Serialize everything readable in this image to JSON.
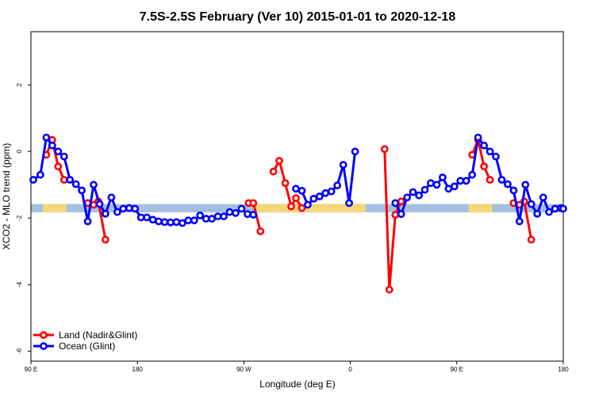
{
  "chart_data": {
    "type": "line",
    "title": "7.5S-2.5S February (Ver 10)   2015-01-01 to 2020-12-18",
    "xlabel": "Longitude (deg E)",
    "ylabel": "XCO2 - MLO trend (ppm)",
    "xlim": [
      90,
      540
    ],
    "ylim": [
      -6.3,
      3.6
    ],
    "x_ticks": [
      {
        "value": 90,
        "label": "90 E"
      },
      {
        "value": 180,
        "label": "180"
      },
      {
        "value": 270,
        "label": "90 W"
      },
      {
        "value": 360,
        "label": "0"
      },
      {
        "value": 450,
        "label": "90 E"
      },
      {
        "value": 540,
        "label": "180"
      }
    ],
    "y_ticks": [
      {
        "value": -6,
        "label": "-6"
      },
      {
        "value": -4,
        "label": "-4"
      },
      {
        "value": -2,
        "label": "-2"
      },
      {
        "value": 0,
        "label": "0"
      },
      {
        "value": 2,
        "label": "2"
      }
    ],
    "grid": false,
    "legend_position": "bottom-left",
    "band": {
      "y_min": -1.83,
      "y_max": -1.58,
      "color": "#a6bfe0"
    },
    "land_highlights": [
      {
        "x_start": 100,
        "x_end": 120,
        "color": "#f5d77a"
      },
      {
        "x_start": 278,
        "x_end": 373,
        "color": "#f5d77a"
      },
      {
        "x_start": 460,
        "x_end": 480,
        "color": "#f5d77a"
      }
    ],
    "series": [
      {
        "name": "Land (Nadir&Glint)",
        "color": "#ff0000",
        "segments": [
          [
            [
              103,
              -0.1
            ],
            [
              108,
              0.35
            ],
            [
              113,
              -0.45
            ],
            [
              118,
              -0.85
            ]
          ],
          [
            [
              138,
              -1.55
            ],
            [
              143,
              -1.6
            ],
            [
              147,
              -1.5
            ],
            [
              153,
              -2.65
            ]
          ],
          [
            [
              274,
              -1.55
            ],
            [
              278,
              -1.55
            ],
            [
              284,
              -2.4
            ]
          ],
          [
            [
              295,
              -0.6
            ],
            [
              300,
              -0.28
            ],
            [
              305,
              -0.95
            ],
            [
              310,
              -1.65
            ],
            [
              314,
              -1.4
            ],
            [
              319,
              -1.7
            ]
          ],
          [
            [
              389,
              0.07
            ],
            [
              393,
              -4.15
            ],
            [
              398,
              -1.9
            ],
            [
              403,
              -1.5
            ]
          ],
          [
            [
              463,
              -0.1
            ],
            [
              468,
              0.35
            ],
            [
              473,
              -0.45
            ],
            [
              478,
              -0.85
            ]
          ],
          [
            [
              498,
              -1.55
            ],
            [
              503,
              -1.6
            ],
            [
              507,
              -1.5
            ],
            [
              513,
              -2.65
            ]
          ]
        ]
      },
      {
        "name": "Ocean (Glint)",
        "color": "#0000ff",
        "segments": [
          [
            [
              92,
              -0.85
            ],
            [
              98,
              -0.7
            ],
            [
              103,
              0.42
            ],
            [
              108,
              0.18
            ],
            [
              113,
              0.0
            ],
            [
              118,
              -0.15
            ],
            [
              123,
              -0.85
            ],
            [
              128,
              -0.98
            ],
            [
              133,
              -1.17
            ],
            [
              138,
              -2.1
            ],
            [
              143,
              -1.0
            ],
            [
              148,
              -1.58
            ],
            [
              153,
              -1.87
            ],
            [
              158,
              -1.38
            ],
            [
              163,
              -1.82
            ],
            [
              168,
              -1.72
            ],
            [
              173,
              -1.7
            ],
            [
              178,
              -1.72
            ],
            [
              183,
              -1.98
            ],
            [
              188,
              -1.98
            ],
            [
              193,
              -2.05
            ],
            [
              198,
              -2.1
            ],
            [
              203,
              -2.12
            ],
            [
              208,
              -2.13
            ],
            [
              213,
              -2.12
            ],
            [
              218,
              -2.15
            ],
            [
              223,
              -2.07
            ],
            [
              228,
              -2.07
            ],
            [
              233,
              -1.92
            ],
            [
              238,
              -2.02
            ],
            [
              243,
              -2.02
            ],
            [
              248,
              -1.95
            ],
            [
              253,
              -1.95
            ],
            [
              258,
              -1.82
            ],
            [
              263,
              -1.85
            ],
            [
              268,
              -1.72
            ],
            [
              273,
              -1.88
            ],
            [
              278,
              -1.9
            ]
          ],
          [
            [
              314,
              -1.12
            ],
            [
              319,
              -1.18
            ],
            [
              324,
              -1.6
            ],
            [
              329,
              -1.42
            ],
            [
              334,
              -1.35
            ],
            [
              339,
              -1.25
            ],
            [
              344,
              -1.2
            ],
            [
              349,
              -1.02
            ],
            [
              354,
              -0.4
            ],
            [
              359,
              -1.55
            ],
            [
              364,
              0.0
            ]
          ],
          [
            [
              398,
              -1.55
            ],
            [
              403,
              -1.88
            ],
            [
              408,
              -1.38
            ],
            [
              413,
              -1.22
            ],
            [
              418,
              -1.32
            ],
            [
              423,
              -1.15
            ],
            [
              428,
              -0.95
            ],
            [
              433,
              -1.0
            ],
            [
              438,
              -0.78
            ],
            [
              443,
              -1.12
            ],
            [
              448,
              -1.05
            ],
            [
              453,
              -0.88
            ],
            [
              458,
              -0.88
            ],
            [
              463,
              -0.7
            ],
            [
              468,
              0.42
            ],
            [
              473,
              0.18
            ],
            [
              478,
              0.0
            ],
            [
              483,
              -0.15
            ],
            [
              488,
              -0.85
            ],
            [
              493,
              -0.98
            ],
            [
              498,
              -1.17
            ],
            [
              503,
              -2.1
            ],
            [
              508,
              -1.0
            ],
            [
              513,
              -1.58
            ],
            [
              518,
              -1.87
            ],
            [
              523,
              -1.38
            ],
            [
              528,
              -1.82
            ],
            [
              533,
              -1.72
            ],
            [
              538,
              -1.7
            ],
            [
              540,
              -1.72
            ]
          ]
        ]
      }
    ]
  }
}
